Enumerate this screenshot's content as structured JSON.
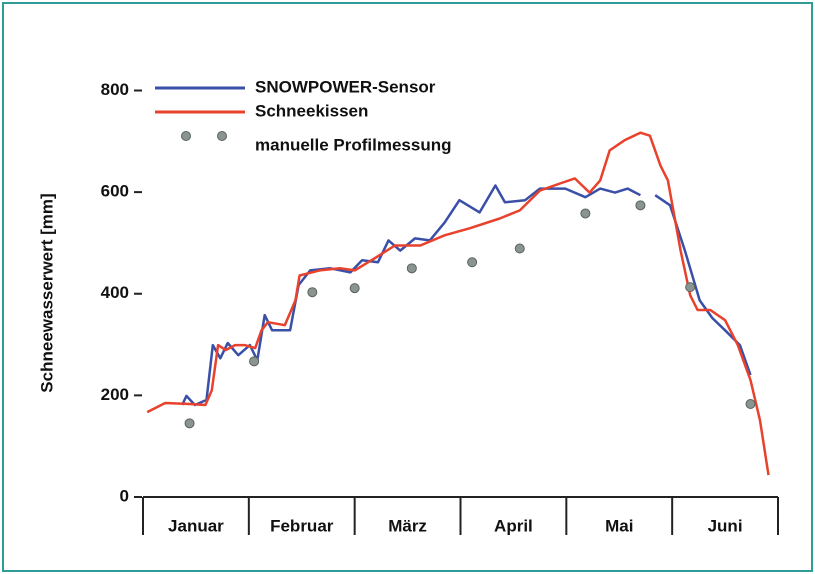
{
  "chart_data": {
    "type": "line",
    "ylabel": "Schneewasserwert [mm]",
    "categories": [
      "Januar",
      "Februar",
      "März",
      "April",
      "Mai",
      "Juni"
    ],
    "xlim": [
      0,
      6
    ],
    "ylim": [
      0,
      860
    ],
    "yticks": [
      0,
      200,
      400,
      600,
      800
    ],
    "legend": "upper left",
    "series": [
      {
        "name": "SNOWPOWER-Sensor",
        "color": "#3a4fa8",
        "kind": "line",
        "x": [
          0.37,
          0.41,
          0.49,
          0.6,
          0.66,
          0.73,
          0.8,
          0.9,
          1.01,
          1.08,
          1.15,
          1.22,
          1.39,
          1.47,
          1.58,
          1.77,
          1.96,
          2.07,
          2.22,
          2.32,
          2.43,
          2.57,
          2.71,
          2.85,
          2.99,
          3.18,
          3.33,
          3.42,
          3.61,
          3.75,
          3.99,
          4.18,
          4.32,
          4.46,
          4.58,
          4.7,
          4.77,
          4.84,
          4.91,
          4.98,
          5.12,
          5.26,
          5.38,
          5.5,
          5.64,
          5.74
        ],
        "values": [
          181,
          199,
          181,
          191,
          299,
          273,
          303,
          279,
          299,
          269,
          358,
          328,
          328,
          417,
          446,
          450,
          442,
          466,
          462,
          505,
          485,
          509,
          505,
          540,
          584,
          560,
          613,
          580,
          584,
          607,
          607,
          590,
          607,
          599,
          607,
          594,
          null,
          594,
          584,
          574,
          485,
          387,
          352,
          328,
          299,
          240
        ]
      },
      {
        "name": "Schneekissen",
        "color": "#e8412c",
        "kind": "line",
        "x": [
          0.04,
          0.21,
          0.44,
          0.59,
          0.65,
          0.71,
          0.78,
          0.87,
          0.96,
          1.06,
          1.12,
          1.18,
          1.34,
          1.44,
          1.48,
          1.67,
          1.86,
          2.0,
          2.19,
          2.38,
          2.62,
          2.85,
          3.09,
          3.37,
          3.56,
          3.75,
          3.94,
          4.08,
          4.22,
          4.32,
          4.41,
          4.55,
          4.7,
          4.79,
          4.89,
          4.96,
          5.08,
          5.17,
          5.24,
          5.36,
          5.5,
          5.62,
          5.74,
          5.83,
          5.91
        ],
        "values": [
          167,
          185,
          183,
          181,
          210,
          299,
          289,
          299,
          299,
          293,
          328,
          344,
          338,
          387,
          436,
          446,
          450,
          446,
          470,
          495,
          495,
          515,
          529,
          548,
          564,
          603,
          617,
          627,
          599,
          623,
          682,
          702,
          717,
          711,
          652,
          623,
          485,
          397,
          368,
          368,
          348,
          299,
          230,
          151,
          43
        ]
      },
      {
        "name": "manuelle Profilmessung",
        "color": "#8a9590",
        "kind": "dots",
        "x": [
          0.44,
          1.05,
          1.6,
          2.0,
          2.54,
          3.11,
          3.56,
          4.18,
          4.7,
          5.17,
          5.74
        ],
        "values": [
          145,
          267,
          403,
          411,
          450,
          462,
          489,
          558,
          574,
          413,
          183
        ]
      }
    ]
  }
}
